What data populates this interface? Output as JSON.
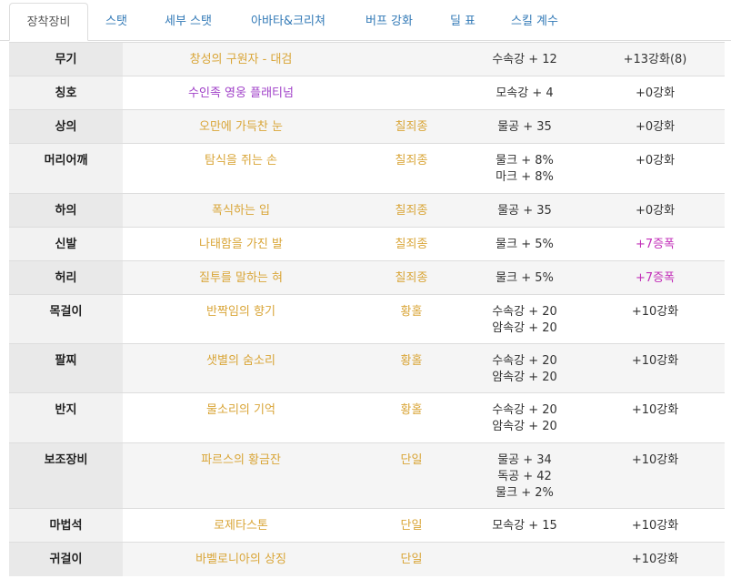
{
  "tabs": [
    {
      "label": "장착장비",
      "active": true
    },
    {
      "label": "스탯",
      "active": false
    },
    {
      "label": "세부 스탯",
      "active": false
    },
    {
      "label": "아바타&크리쳐",
      "active": false
    },
    {
      "label": "버프 강화",
      "active": false
    },
    {
      "label": "딜 표",
      "active": false
    },
    {
      "label": "스킬 계수",
      "active": false
    }
  ],
  "colors": {
    "item_gold": "#d9a537",
    "item_purple": "#a040c8",
    "upgrade_magenta": "#c22fb8",
    "tab_link": "#337ab7"
  },
  "equipment": [
    {
      "slot": "무기",
      "name": "창성의 구원자 - 대검",
      "name_color": "gold",
      "set": "",
      "stats": [
        "수속강 + 12"
      ],
      "upgrade": "+13강화(8)",
      "upgrade_color": "normal"
    },
    {
      "slot": "칭호",
      "name": "수인족 영웅 플래티넘",
      "name_color": "purple",
      "set": "",
      "stats": [
        "모속강 + 4"
      ],
      "upgrade": "+0강화",
      "upgrade_color": "normal"
    },
    {
      "slot": "상의",
      "name": "오만에 가득찬 눈",
      "name_color": "gold",
      "set": "칠죄종",
      "stats": [
        "물공 + 35"
      ],
      "upgrade": "+0강화",
      "upgrade_color": "normal"
    },
    {
      "slot": "머리어깨",
      "name": "탐식을 쥐는 손",
      "name_color": "gold",
      "set": "칠죄종",
      "stats": [
        "물크 + 8%",
        "마크 + 8%"
      ],
      "upgrade": "+0강화",
      "upgrade_color": "normal"
    },
    {
      "slot": "하의",
      "name": "폭식하는 입",
      "name_color": "gold",
      "set": "칠죄종",
      "stats": [
        "물공 + 35"
      ],
      "upgrade": "+0강화",
      "upgrade_color": "normal"
    },
    {
      "slot": "신발",
      "name": "나태함을 가진 발",
      "name_color": "gold",
      "set": "칠죄종",
      "stats": [
        "물크 + 5%"
      ],
      "upgrade": "+7증폭",
      "upgrade_color": "magenta"
    },
    {
      "slot": "허리",
      "name": "질투를 말하는 혀",
      "name_color": "gold",
      "set": "칠죄종",
      "stats": [
        "물크 + 5%"
      ],
      "upgrade": "+7증폭",
      "upgrade_color": "magenta"
    },
    {
      "slot": "목걸이",
      "name": "반짝임의 향기",
      "name_color": "gold",
      "set": "황홀",
      "stats": [
        "수속강 + 20",
        "암속강 + 20"
      ],
      "upgrade": "+10강화",
      "upgrade_color": "normal"
    },
    {
      "slot": "팔찌",
      "name": "샛별의 숨소리",
      "name_color": "gold",
      "set": "황홀",
      "stats": [
        "수속강 + 20",
        "암속강 + 20"
      ],
      "upgrade": "+10강화",
      "upgrade_color": "normal"
    },
    {
      "slot": "반지",
      "name": "물소리의 기억",
      "name_color": "gold",
      "set": "황홀",
      "stats": [
        "수속강 + 20",
        "암속강 + 20"
      ],
      "upgrade": "+10강화",
      "upgrade_color": "normal"
    },
    {
      "slot": "보조장비",
      "name": "파르스의 황금잔",
      "name_color": "gold",
      "set": "단일",
      "stats": [
        "물공 + 34",
        "독공 + 42",
        "물크 + 2%"
      ],
      "upgrade": "+10강화",
      "upgrade_color": "normal"
    },
    {
      "slot": "마법석",
      "name": "로제타스톤",
      "name_color": "gold",
      "set": "단일",
      "stats": [
        "모속강 + 15"
      ],
      "upgrade": "+10강화",
      "upgrade_color": "normal"
    },
    {
      "slot": "귀걸이",
      "name": "바벨로니아의 상징",
      "name_color": "gold",
      "set": "단일",
      "stats": [],
      "upgrade": "+10강화",
      "upgrade_color": "normal"
    }
  ]
}
